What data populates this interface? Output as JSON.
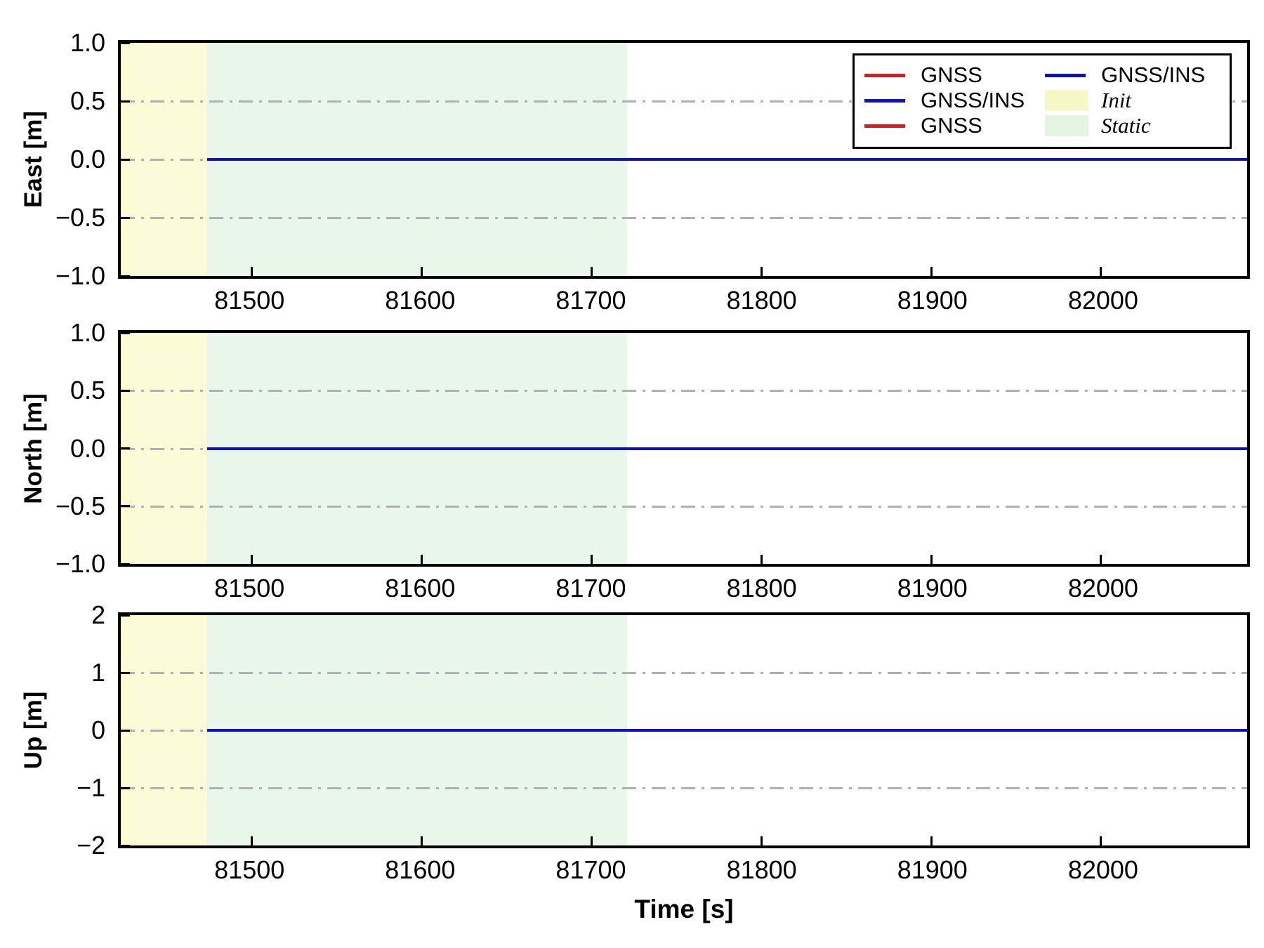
{
  "chart_data": {
    "type": "line",
    "title": "",
    "xlabel": "Time [s]",
    "xlim": [
      81423,
      82086
    ],
    "x_ticks": [
      {
        "value": 81500,
        "label": "81500"
      },
      {
        "value": 81600,
        "label": "81600"
      },
      {
        "value": 81700,
        "label": "81700"
      },
      {
        "value": 81800,
        "label": "81800"
      },
      {
        "value": 81900,
        "label": "81900"
      },
      {
        "value": 82000,
        "label": "82000"
      }
    ],
    "grid": {
      "style": "dash-dot",
      "color": "#b0b0b0",
      "orientation": "horizontal"
    },
    "regions": [
      {
        "name": "Init",
        "x_start": 81423,
        "x_end": 81474,
        "color": "#fbfbd8"
      },
      {
        "name": "Static",
        "x_start": 81474,
        "x_end": 81721,
        "color": "#e8f7ea"
      }
    ],
    "series": [
      {
        "name": "GNSS",
        "color": "#dc1c1c",
        "x_start": 81474,
        "x_end": 82086,
        "value": 0.0
      },
      {
        "name": "GNSS/INS",
        "color": "#0f0fc8",
        "x_start": 81474,
        "x_end": 82086,
        "value": 0.0
      }
    ],
    "subplots": [
      {
        "ylabel": "East [m]",
        "ylim": [
          -1.0,
          1.0
        ],
        "y_ticks": [
          {
            "value": 1.0,
            "label": "1.0"
          },
          {
            "value": 0.5,
            "label": "0.5"
          },
          {
            "value": 0.0,
            "label": "0.0"
          },
          {
            "value": -0.5,
            "label": "−0.5"
          },
          {
            "value": -1.0,
            "label": "−1.0"
          }
        ],
        "grid_values": [
          0.5,
          0.0,
          -0.5
        ]
      },
      {
        "ylabel": "North [m]",
        "ylim": [
          -1.0,
          1.0
        ],
        "y_ticks": [
          {
            "value": 1.0,
            "label": "1.0"
          },
          {
            "value": 0.5,
            "label": "0.5"
          },
          {
            "value": 0.0,
            "label": "0.0"
          },
          {
            "value": -0.5,
            "label": "−0.5"
          },
          {
            "value": -1.0,
            "label": "−1.0"
          }
        ],
        "grid_values": [
          0.5,
          0.0,
          -0.5
        ]
      },
      {
        "ylabel": "Up [m]",
        "ylim": [
          -2,
          2
        ],
        "y_ticks": [
          {
            "value": 2,
            "label": "2"
          },
          {
            "value": 1,
            "label": "1"
          },
          {
            "value": 0,
            "label": "0"
          },
          {
            "value": -1,
            "label": "−1"
          },
          {
            "value": -2,
            "label": "−2"
          }
        ],
        "grid_values": [
          1,
          0,
          -1
        ]
      }
    ],
    "legend": {
      "position": "upper right",
      "columns": [
        {
          "entries": [
            {
              "label": "GNSS",
              "swatch": "line",
              "color": "#dc1c1c",
              "italic": false
            },
            {
              "label": "GNSS/INS",
              "swatch": "line",
              "color": "#0f0fc8",
              "italic": false
            },
            {
              "label": "GNSS",
              "swatch": "line",
              "color": "#dc1c1c",
              "italic": false
            }
          ]
        },
        {
          "entries": [
            {
              "label": "GNSS/INS",
              "swatch": "line",
              "color": "#0f0fc8",
              "italic": false
            },
            {
              "label": "Init",
              "swatch": "patch",
              "color": "#f7f7c6",
              "italic": true
            },
            {
              "label": "Static",
              "swatch": "patch",
              "color": "#e2f5e2",
              "italic": true
            }
          ]
        }
      ]
    }
  }
}
